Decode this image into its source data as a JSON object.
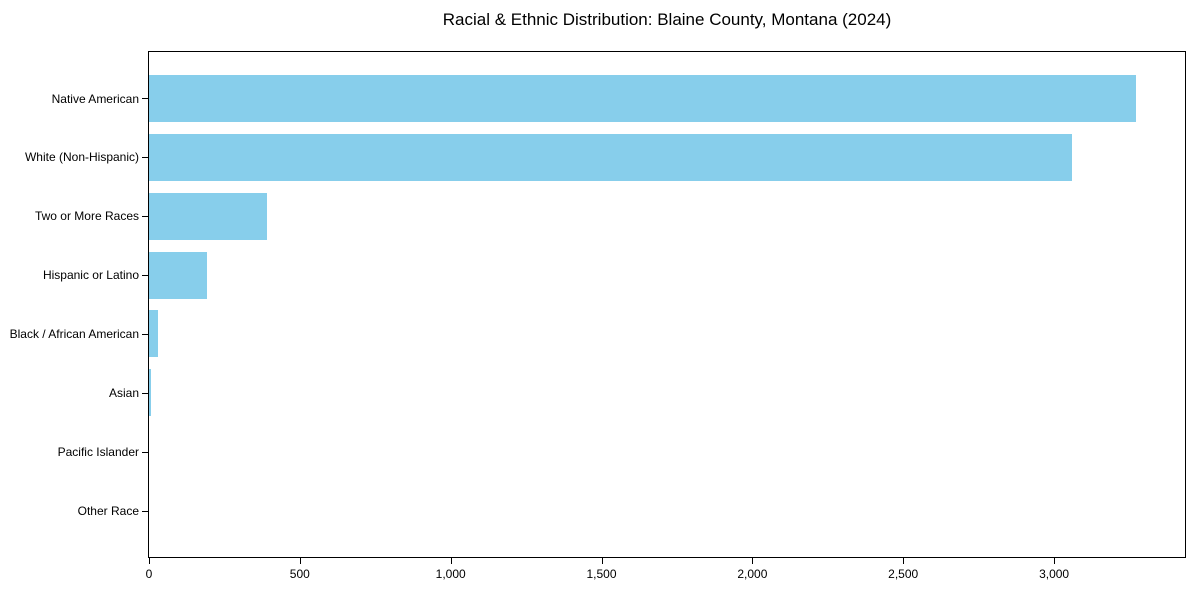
{
  "chart_data": {
    "type": "bar",
    "orientation": "horizontal",
    "title": "Racial & Ethnic Distribution: Blaine County, Montana (2024)",
    "categories": [
      "Native American",
      "White (Non-Hispanic)",
      "Two or More Races",
      "Hispanic or Latino",
      "Black / African American",
      "Asian",
      "Pacific Islander",
      "Other Race"
    ],
    "values": [
      3270,
      3060,
      390,
      192,
      30,
      8,
      0,
      0
    ],
    "xlabel": "",
    "ylabel": "",
    "xlim": [
      0,
      3434
    ],
    "xticks": [
      0,
      500,
      1000,
      1500,
      2000,
      2500,
      3000
    ],
    "xtick_labels": [
      "0",
      "500",
      "1,000",
      "1,500",
      "2,000",
      "2,500",
      "3,000"
    ],
    "bar_color": "#87CEEB",
    "axis_color": "#000000",
    "text_color": "#000000",
    "background_color": "#ffffff",
    "grid": false,
    "legend": null
  }
}
